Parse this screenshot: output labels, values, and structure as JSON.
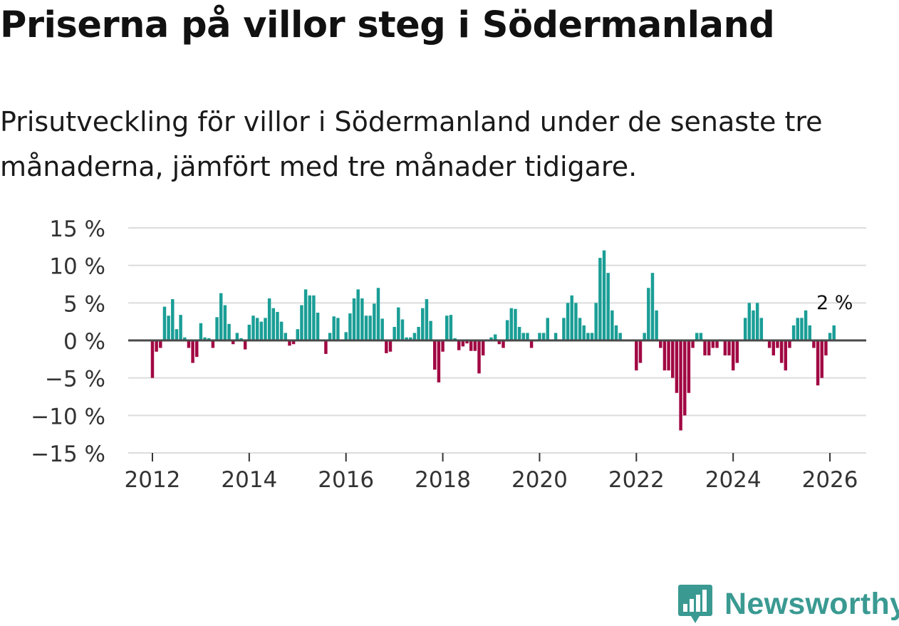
{
  "title": "Priserna på villor steg i Södermanland",
  "subtitle": "Prisutveckling för villor i Södermanland under de senaste tre månaderna, jämfört med tre månader tidigare.",
  "brand": {
    "name": "Newsworthy"
  },
  "colors": {
    "positive": "#1a9e96",
    "negative": "#a10843",
    "zero_line": "#4a4a4a",
    "grid": "#dcdcdc",
    "brand": "#3a9a92"
  },
  "chart_data": {
    "type": "bar",
    "unit": "%",
    "ylim": [
      -15,
      15
    ],
    "yticks": [
      15,
      10,
      5,
      0,
      -5,
      -10,
      -15
    ],
    "ytick_labels": [
      "15 %",
      "10 %",
      "5 %",
      "0 %",
      "−5 %",
      "−10 %",
      "−15 %"
    ],
    "xlim": [
      2011.5,
      2026.75
    ],
    "xticks": [
      2012,
      2014,
      2016,
      2018,
      2020,
      2022,
      2024,
      2026
    ],
    "xtick_labels": [
      "2012",
      "2014",
      "2016",
      "2018",
      "2020",
      "2022",
      "2024",
      "2026"
    ],
    "grid": true,
    "last_value_label": "2 %",
    "start": {
      "year": 2012,
      "month": 1
    },
    "frequency": "monthly",
    "values": [
      -5,
      -1.5,
      -1,
      4.5,
      3.3,
      5.5,
      1.5,
      3.4,
      0.4,
      -1,
      -3,
      -2.2,
      2.3,
      0.4,
      0.3,
      -1,
      3.1,
      6.3,
      4.7,
      2.2,
      -0.5,
      1,
      0.3,
      -1.2,
      2.1,
      3.3,
      3,
      2.5,
      3,
      5.6,
      4.3,
      3.8,
      2.5,
      1,
      -0.7,
      -0.5,
      1.5,
      4.7,
      6.8,
      6,
      6,
      3.7,
      0,
      -1.8,
      1,
      3.2,
      3,
      0,
      1.1,
      3.6,
      5.6,
      6.8,
      5.6,
      3.3,
      3.3,
      4.9,
      7,
      2.9,
      -1.7,
      -1.5,
      1.8,
      4.4,
      2.8,
      0.4,
      0.4,
      1,
      1.8,
      4.3,
      5.5,
      2.6,
      -3.9,
      -5.6,
      -1.5,
      3.3,
      3.4,
      0.3,
      -1.3,
      -0.8,
      -0.4,
      -1.4,
      -1.4,
      -4.4,
      -2,
      0,
      0.4,
      0.8,
      -0.5,
      -1,
      2.7,
      4.3,
      4.2,
      1.8,
      1,
      1,
      -1,
      0,
      1,
      1,
      3,
      0,
      1,
      0,
      3,
      5,
      6,
      5,
      3,
      2,
      1,
      1,
      5,
      11,
      12,
      9,
      4,
      2,
      1,
      0,
      0,
      0,
      -4,
      -3,
      1,
      7,
      9,
      4,
      -1,
      -4,
      -4,
      -5,
      -7,
      -12,
      -10,
      -7,
      -1,
      1,
      1,
      -2,
      -2,
      -1,
      -1,
      0,
      -2,
      -2,
      -4,
      -3,
      0,
      3,
      5,
      4,
      5,
      3,
      0,
      -1,
      -2,
      -1,
      -3,
      -4,
      -1,
      2,
      3,
      3,
      4,
      2,
      -1,
      -6,
      -5,
      -2,
      1,
      2
    ]
  }
}
